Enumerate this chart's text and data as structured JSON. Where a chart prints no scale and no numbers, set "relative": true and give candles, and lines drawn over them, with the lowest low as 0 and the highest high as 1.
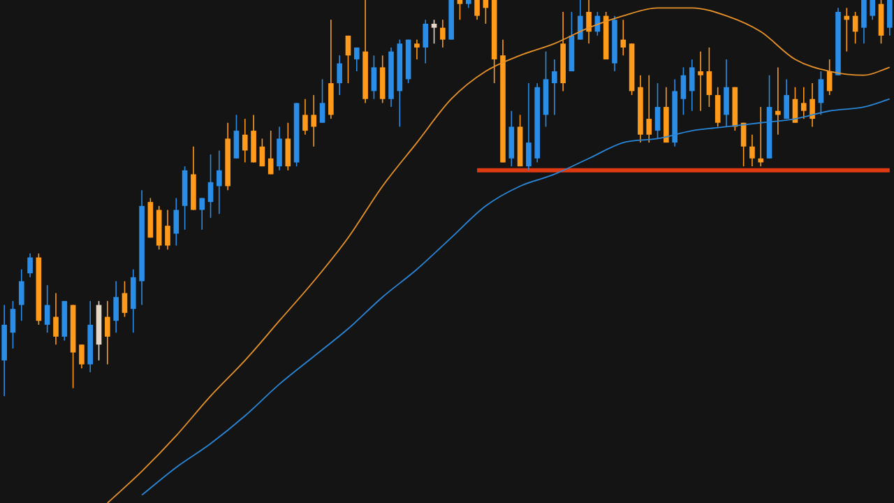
{
  "chart_data": {
    "type": "candlestick",
    "relative": true,
    "categories": [
      null,
      null,
      null,
      null,
      null,
      null,
      null,
      null,
      null,
      null,
      null,
      null,
      null,
      null,
      null,
      null,
      null,
      null,
      null,
      null,
      null,
      null,
      null,
      null,
      null,
      null,
      null,
      null,
      null,
      null,
      null,
      null,
      null,
      null,
      null,
      null,
      null,
      null,
      null,
      null,
      null,
      null,
      null,
      null,
      null,
      null,
      null,
      null,
      null,
      null,
      null,
      null,
      null,
      null,
      null,
      null,
      null,
      null,
      null,
      null,
      null,
      null,
      null,
      null,
      null,
      null,
      null,
      null,
      null,
      null,
      null,
      null,
      null,
      null,
      null,
      null,
      null,
      null,
      null,
      null,
      null,
      null,
      null,
      null,
      null,
      null,
      null,
      null,
      null,
      null,
      null,
      null,
      null,
      null,
      null,
      null,
      null,
      null,
      null,
      null,
      null,
      null,
      null,
      null
    ],
    "ohlc": [
      [
        0.09,
        0.23,
        0,
        0.18
      ],
      [
        0.16,
        0.24,
        0.12,
        0.22
      ],
      [
        0.23,
        0.32,
        0.19,
        0.29
      ],
      [
        0.31,
        0.36,
        0.3,
        0.35
      ],
      [
        0.35,
        0.36,
        0.18,
        0.19
      ],
      [
        0.18,
        0.28,
        0.16,
        0.23
      ],
      [
        0.2,
        0.26,
        0.13,
        0.15
      ],
      [
        0.15,
        0.24,
        0.14,
        0.24
      ],
      [
        0.23,
        0.23,
        0.02,
        0.11
      ],
      [
        0.13,
        0.13,
        0.07,
        0.08
      ],
      [
        0.08,
        0.24,
        0.06,
        0.18
      ],
      [
        0.23,
        0.24,
        0.09,
        0.13
      ],
      [
        0.2,
        0.24,
        0.08,
        0.15
      ],
      [
        0.19,
        0.29,
        0.16,
        0.25
      ],
      [
        0.26,
        0.29,
        0.2,
        0.21
      ],
      [
        0.22,
        0.32,
        0.16,
        0.3
      ],
      [
        0.29,
        0.52,
        0.23,
        0.48
      ],
      [
        0.49,
        0.5,
        0.4,
        0.4
      ],
      [
        0.47,
        0.48,
        0.37,
        0.38
      ],
      [
        0.43,
        0.47,
        0.37,
        0.38
      ],
      [
        0.41,
        0.5,
        0.38,
        0.47
      ],
      [
        0.48,
        0.58,
        0.42,
        0.57
      ],
      [
        0.56,
        0.63,
        0.47,
        0.47
      ],
      [
        0.47,
        0.5,
        0.42,
        0.5
      ],
      [
        0.49,
        0.61,
        0.45,
        0.54
      ],
      [
        0.53,
        0.62,
        0.46,
        0.57
      ],
      [
        0.65,
        0.69,
        0.52,
        0.53
      ],
      [
        0.6,
        0.71,
        0.6,
        0.67
      ],
      [
        0.66,
        0.7,
        0.59,
        0.62
      ],
      [
        0.67,
        0.71,
        0.59,
        0.59
      ],
      [
        0.63,
        0.65,
        0.58,
        0.58
      ],
      [
        0.6,
        0.67,
        0.56,
        0.56
      ],
      [
        0.58,
        0.68,
        0.57,
        0.65
      ],
      [
        0.65,
        0.69,
        0.57,
        0.58
      ],
      [
        0.59,
        0.74,
        0.58,
        0.74
      ],
      [
        0.71,
        0.75,
        0.66,
        0.67
      ],
      [
        0.71,
        0.76,
        0.63,
        0.68
      ],
      [
        0.69,
        0.8,
        0.69,
        0.74
      ],
      [
        0.79,
        0.95,
        0.7,
        0.71
      ],
      [
        0.79,
        0.86,
        0.76,
        0.84
      ],
      [
        0.91,
        0.91,
        0.79,
        0.86
      ],
      [
        0.85,
        0.88,
        0.82,
        0.88
      ],
      [
        0.87,
        1,
        0.74,
        0.75
      ],
      [
        0.77,
        0.86,
        0.75,
        0.83
      ],
      [
        0.83,
        0.86,
        0.74,
        0.75
      ],
      [
        0.75,
        0.88,
        0.73,
        0.87
      ],
      [
        0.77,
        0.9,
        0.68,
        0.89
      ],
      [
        0.8,
        0.9,
        0.79,
        0.9
      ],
      [
        0.89,
        0.9,
        0.85,
        0.88
      ],
      [
        0.88,
        0.95,
        0.84,
        0.94
      ],
      [
        0.94,
        0.95,
        0.89,
        0.93
      ],
      [
        0.93,
        0.95,
        0.88,
        0.9
      ],
      [
        0.9,
        1,
        0.9,
        1
      ],
      [
        1,
        1,
        0.95,
        0.99
      ],
      [
        0.99,
        1,
        0.98,
        1
      ],
      [
        1,
        1,
        0.95,
        0.96
      ],
      [
        1,
        1,
        0.94,
        0.98
      ],
      [
        1,
        1,
        0.79,
        0.85
      ],
      [
        0.86,
        0.9,
        0.59,
        0.59
      ],
      [
        0.6,
        0.72,
        0.58,
        0.68
      ],
      [
        0.68,
        0.71,
        0.58,
        0.58
      ],
      [
        0.58,
        0.79,
        0.57,
        0.64
      ],
      [
        0.6,
        0.79,
        0.59,
        0.78
      ],
      [
        0.71,
        0.87,
        0.68,
        0.8
      ],
      [
        0.79,
        0.85,
        0.71,
        0.82
      ],
      [
        0.89,
        0.97,
        0.77,
        0.79
      ],
      [
        0.82,
        0.97,
        0.82,
        0.91
      ],
      [
        0.9,
        1,
        0.9,
        0.96
      ],
      [
        0.97,
        1,
        0.89,
        0.92
      ],
      [
        0.92,
        0.97,
        0.91,
        0.96
      ],
      [
        0.96,
        0.97,
        0.85,
        0.85
      ],
      [
        0.84,
        0.96,
        0.82,
        0.95
      ],
      [
        0.9,
        0.95,
        0.86,
        0.88
      ],
      [
        0.89,
        0.89,
        0.76,
        0.77
      ],
      [
        0.78,
        0.81,
        0.64,
        0.66
      ],
      [
        0.7,
        0.81,
        0.64,
        0.66
      ],
      [
        0.67,
        0.79,
        0.65,
        0.73
      ],
      [
        0.73,
        0.78,
        0.64,
        0.64
      ],
      [
        0.64,
        0.8,
        0.63,
        0.77
      ],
      [
        0.75,
        0.83,
        0.71,
        0.81
      ],
      [
        0.77,
        0.85,
        0.72,
        0.83
      ],
      [
        0.82,
        0.87,
        0.72,
        0.81
      ],
      [
        0.82,
        0.88,
        0.73,
        0.76
      ],
      [
        0.76,
        0.78,
        0.68,
        0.69
      ],
      [
        0.71,
        0.85,
        0.68,
        0.78
      ],
      [
        0.78,
        0.78,
        0.67,
        0.68
      ],
      [
        0.69,
        0.69,
        0.58,
        0.63
      ],
      [
        0.63,
        0.66,
        0.58,
        0.6
      ],
      [
        0.6,
        0.73,
        0.58,
        0.59
      ],
      [
        0.6,
        0.81,
        0.6,
        0.73
      ],
      [
        0.72,
        0.83,
        0.66,
        0.71
      ],
      [
        0.7,
        0.8,
        0.7,
        0.76
      ],
      [
        0.75,
        0.78,
        0.69,
        0.69
      ],
      [
        0.74,
        0.78,
        0.7,
        0.72
      ],
      [
        0.75,
        0.79,
        0.68,
        0.7
      ],
      [
        0.74,
        0.82,
        0.71,
        0.8
      ],
      [
        0.82,
        0.85,
        0.76,
        0.77
      ],
      [
        0.81,
        0.98,
        0.81,
        0.97
      ],
      [
        0.96,
        0.98,
        0.87,
        0.95
      ],
      [
        0.96,
        0.97,
        0.89,
        0.92
      ],
      [
        0.93,
        1,
        0.89,
        1
      ],
      [
        0.96,
        1,
        0.95,
        1
      ],
      [
        0.99,
        1,
        0.89,
        0.91
      ],
      [
        0.93,
        1,
        0.91,
        1
      ]
    ],
    "colors": [
      "#2a8ee8",
      "#2a8ee8",
      "#2a8ee8",
      "#2a8ee8",
      "#ff9a1a",
      "#2a8ee8",
      "#ff9a1a",
      "#2a8ee8",
      "#ff9a1a",
      "#ff9a1a",
      "#2a8ee8",
      "#e6d6c6",
      "#ff9a1a",
      "#2a8ee8",
      "#ff9a1a",
      "#2a8ee8",
      "#2a8ee8",
      "#ff9a1a",
      "#ff9a1a",
      "#ff9a1a",
      "#2a8ee8",
      "#2a8ee8",
      "#ff9a1a",
      "#2a8ee8",
      "#2a8ee8",
      "#2a8ee8",
      "#ff9a1a",
      "#2a8ee8",
      "#ff9a1a",
      "#ff9a1a",
      "#ff9a1a",
      "#ff9a1a",
      "#2a8ee8",
      "#ff9a1a",
      "#2a8ee8",
      "#ff9a1a",
      "#ff9a1a",
      "#2a8ee8",
      "#ff9a1a",
      "#2a8ee8",
      "#ff9a1a",
      "#2a8ee8",
      "#ff9a1a",
      "#2a8ee8",
      "#ff9a1a",
      "#2a8ee8",
      "#2a8ee8",
      "#2a8ee8",
      "#ff9a1a",
      "#2a8ee8",
      "#e6d6c6",
      "#ff9a1a",
      "#2a8ee8",
      "#ff9a1a",
      "#2a8ee8",
      "#ff9a1a",
      "#ff9a1a",
      "#ff9a1a",
      "#ff9a1a",
      "#2a8ee8",
      "#ff9a1a",
      "#2a8ee8",
      "#2a8ee8",
      "#2a8ee8",
      "#2a8ee8",
      "#ff9a1a",
      "#2a8ee8",
      "#2a8ee8",
      "#ff9a1a",
      "#2a8ee8",
      "#ff9a1a",
      "#2a8ee8",
      "#ff9a1a",
      "#ff9a1a",
      "#ff9a1a",
      "#ff9a1a",
      "#2a8ee8",
      "#ff9a1a",
      "#2a8ee8",
      "#2a8ee8",
      "#2a8ee8",
      "#ff9a1a",
      "#ff9a1a",
      "#ff9a1a",
      "#2a8ee8",
      "#ff9a1a",
      "#ff9a1a",
      "#ff9a1a",
      "#ff9a1a",
      "#2a8ee8",
      "#ff9a1a",
      "#2a8ee8",
      "#ff9a1a",
      "#ff9a1a",
      "#ff9a1a",
      "#2a8ee8",
      "#ff9a1a",
      "#2a8ee8",
      "#ff9a1a",
      "#ff9a1a",
      "#2a8ee8",
      "#2a8ee8",
      "#ff9a1a",
      "#2a8ee8"
    ],
    "series": [
      {
        "type": "line",
        "color": "#e8922a",
        "values": [
          null,
          null,
          null,
          null,
          null,
          null,
          null,
          null,
          null,
          null,
          null,
          null,
          -0.27,
          null,
          null,
          null,
          -0.19,
          null,
          null,
          null,
          -0.1,
          null,
          null,
          null,
          0.0,
          null,
          null,
          null,
          0.09,
          null,
          null,
          null,
          0.19,
          null,
          null,
          null,
          0.29,
          null,
          null,
          null,
          0.4,
          null,
          null,
          null,
          0.53,
          null,
          null,
          null,
          0.64,
          null,
          null,
          null,
          0.75,
          null,
          null,
          null,
          0.82,
          null,
          null,
          null,
          0.86,
          null,
          null,
          null,
          0.89,
          null,
          null,
          null,
          0.93,
          null,
          null,
          null,
          0.96,
          null,
          null,
          null,
          0.98,
          null,
          null,
          null,
          0.98,
          null,
          null,
          null,
          0.96,
          null,
          null,
          null,
          0.92,
          null,
          null,
          null,
          0.85,
          null,
          null,
          null,
          0.82,
          null,
          null,
          null,
          0.81,
          null,
          null,
          0.83
        ]
      },
      {
        "type": "line",
        "color": "#2a86d8",
        "values": [
          null,
          null,
          null,
          null,
          null,
          null,
          null,
          null,
          null,
          null,
          null,
          null,
          null,
          null,
          null,
          null,
          -0.25,
          null,
          null,
          null,
          -0.18,
          null,
          null,
          null,
          -0.12,
          null,
          null,
          null,
          -0.05,
          null,
          null,
          null,
          0.03,
          null,
          null,
          null,
          0.1,
          null,
          null,
          null,
          0.17,
          null,
          null,
          null,
          0.25,
          null,
          null,
          null,
          0.32,
          null,
          null,
          null,
          0.4,
          null,
          null,
          null,
          0.48,
          null,
          null,
          null,
          0.53,
          null,
          null,
          null,
          0.56,
          null,
          null,
          null,
          0.6,
          null,
          null,
          null,
          0.64,
          null,
          null,
          null,
          0.65,
          null,
          null,
          null,
          0.67,
          null,
          null,
          null,
          0.68,
          null,
          null,
          null,
          0.69,
          null,
          null,
          null,
          0.7,
          null,
          null,
          null,
          0.72,
          null,
          null,
          null,
          0.73,
          null,
          null,
          0.75
        ]
      },
      {
        "type": "line",
        "color": "#e03a12",
        "values": [
          null,
          null,
          null,
          null,
          null,
          null,
          null,
          null,
          null,
          null,
          null,
          null,
          null,
          null,
          null,
          null,
          null,
          null,
          null,
          null,
          null,
          null,
          null,
          null,
          null,
          null,
          null,
          null,
          null,
          null,
          null,
          null,
          null,
          null,
          null,
          null,
          null,
          null,
          null,
          null,
          null,
          null,
          null,
          null,
          null,
          null,
          null,
          null,
          null,
          null,
          null,
          null,
          null,
          null,
          null,
          0.57,
          null,
          null,
          null,
          null,
          null,
          null,
          null,
          null,
          null,
          null,
          null,
          null,
          null,
          null,
          null,
          null,
          null,
          null,
          null,
          null,
          null,
          null,
          null,
          null,
          null,
          null,
          null,
          null,
          null,
          null,
          null,
          null,
          null,
          null,
          null,
          null,
          null,
          null,
          null,
          null,
          null,
          null,
          null,
          null,
          null,
          null,
          null,
          0.57
        ]
      }
    ]
  }
}
